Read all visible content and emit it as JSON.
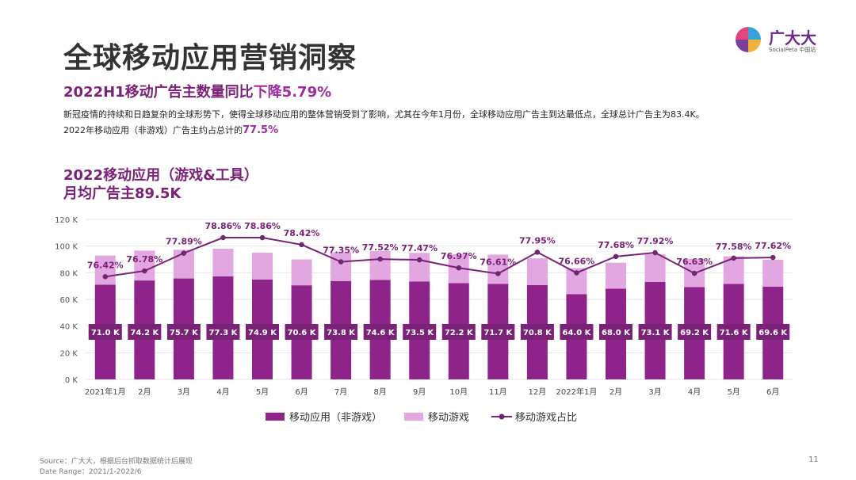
{
  "header": {
    "title": "全球移动应用营销洞察",
    "subtitle": "2022H1移动广告主数量同比",
    "subtitle_highlight": "下降5.79%",
    "paragraph": [
      "新冠疫情的持续和日趋复杂的全球形势下，使得全球移动应用的整体营销受到了影响，尤其在今年1月份，全球移动应用广告主到达最低点，全球总计广告主为83.4K。",
      "2022年移动应用（非游戏）广告主约占总计的"
    ],
    "paragraph_highlight": "77.5%",
    "logo_name": "广大大",
    "logo_sub": "SocialPeta 中国站"
  },
  "chart_data": {
    "type": "bar",
    "title": [
      "2022移动应用（游戏&工具）",
      "月均广告主89.5K"
    ],
    "categories": [
      "2021年1月",
      "2月",
      "3月",
      "4月",
      "5月",
      "6月",
      "7月",
      "8月",
      "9月",
      "10月",
      "11月",
      "12月",
      "2022年1月",
      "2月",
      "3月",
      "4月",
      "5月",
      "6月"
    ],
    "series": [
      {
        "name": "移动应用（非游戏）",
        "color": "#8e2489",
        "values": [
          71.0,
          74.2,
          75.7,
          77.3,
          74.9,
          70.6,
          73.8,
          74.6,
          73.5,
          72.2,
          71.7,
          70.8,
          64.0,
          68.0,
          73.1,
          69.2,
          71.6,
          69.6
        ],
        "value_labels": [
          "71.0 K",
          "74.2 K",
          "75.7 K",
          "77.3 K",
          "74.9 K",
          "70.6 K",
          "73.8 K",
          "74.6 K",
          "73.5 K",
          "72.2 K",
          "71.7 K",
          "70.8 K",
          "64.0 K",
          "68.0 K",
          "73.1 K",
          "69.2 K",
          "71.6 K",
          "69.6 K"
        ]
      },
      {
        "name": "移动游戏",
        "color": "#e2a6e0",
        "values": [
          21.9,
          22.4,
          21.5,
          20.7,
          20.1,
          19.4,
          21.6,
          21.6,
          21.4,
          21.6,
          21.9,
          20.0,
          19.5,
          19.5,
          20.7,
          21.1,
          20.7,
          20.1
        ]
      },
      {
        "name": "移动游戏占比",
        "color": "#7a2178",
        "type": "line",
        "axis": "y2",
        "values": [
          76.42,
          76.78,
          77.89,
          78.86,
          78.86,
          78.42,
          77.35,
          77.52,
          77.47,
          76.97,
          76.61,
          77.95,
          76.66,
          77.68,
          77.92,
          76.63,
          77.58,
          77.62
        ],
        "value_labels": [
          "76.42%",
          "76.78%",
          "77.89%",
          "78.86%",
          "78.86%",
          "78.42%",
          "77.35%",
          "77.52%",
          "77.47%",
          "76.97%",
          "76.61%",
          "77.95%",
          "76.66%",
          "77.68%",
          "77.92%",
          "76.63%",
          "77.58%",
          "77.62%"
        ]
      }
    ],
    "stacked": true,
    "ylim": [
      0,
      120
    ],
    "yticks": [
      {
        "value": 0,
        "label": "0 K"
      },
      {
        "value": 20,
        "label": "20 K"
      },
      {
        "value": 40,
        "label": "40 K"
      },
      {
        "value": 60,
        "label": "60 K"
      },
      {
        "value": 80,
        "label": "80 K"
      },
      {
        "value": 100,
        "label": "100 K"
      },
      {
        "value": 120,
        "label": "120 K"
      }
    ],
    "y2lim": [
      70,
      80
    ],
    "grid": true,
    "legend": "bottom"
  },
  "footer": {
    "source": "Source：广大大，根据后台抓取数据统计后展现",
    "date_range": "Date Range：2021/1-2022/6",
    "page": "11"
  }
}
